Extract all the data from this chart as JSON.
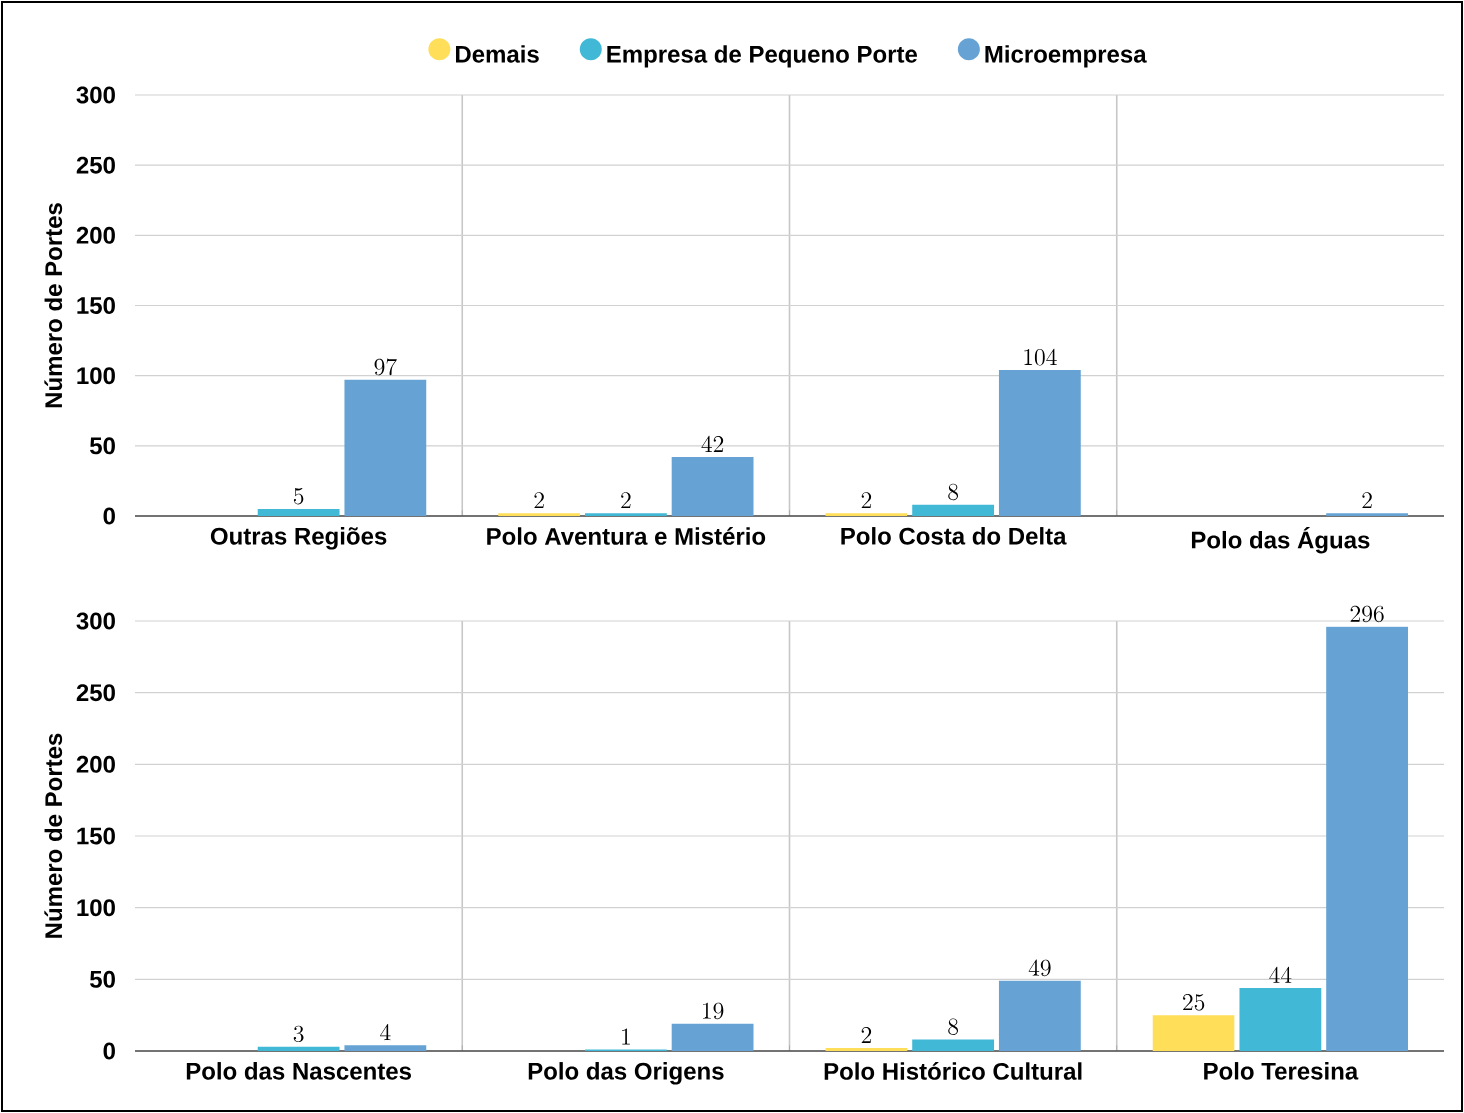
{
  "chart_data": [
    {
      "type": "bar",
      "ylabel": "Número de Portes",
      "categories": [
        "Outras Regiões",
        "Polo Aventura e Mistério",
        "Polo Costa do Delta",
        "Polo das Águas"
      ],
      "ylim": [
        0,
        300
      ],
      "yticks": [
        0,
        50,
        100,
        150,
        200,
        250,
        300
      ],
      "grid": "y",
      "legend": "top",
      "data_labels": true,
      "series": [
        {
          "name": "Demais",
          "color": "#ffde59",
          "values": [
            null,
            2,
            2,
            null
          ]
        },
        {
          "name": "Empresa de Pequeno Porte",
          "color": "#41b8d5",
          "values": [
            5,
            2,
            8,
            null
          ]
        },
        {
          "name": "Microempresa",
          "color": "#66a3d4",
          "values": [
            97,
            42,
            104,
            2
          ]
        }
      ]
    },
    {
      "type": "bar",
      "ylabel": "Número de Portes",
      "categories": [
        "Polo das Nascentes",
        "Polo das Origens",
        "Polo Histórico Cultural",
        "Polo Teresina"
      ],
      "ylim": [
        0,
        300
      ],
      "yticks": [
        0,
        50,
        100,
        150,
        200,
        250,
        300
      ],
      "grid": "y",
      "data_labels": true,
      "series": [
        {
          "color": "#ffde59",
          "values": [
            null,
            null,
            2,
            25
          ]
        },
        {
          "color": "#41b8d5",
          "values": [
            3,
            1,
            8,
            44
          ]
        },
        {
          "color": "#66a3d4",
          "values": [
            4,
            19,
            49,
            296
          ]
        }
      ]
    }
  ]
}
